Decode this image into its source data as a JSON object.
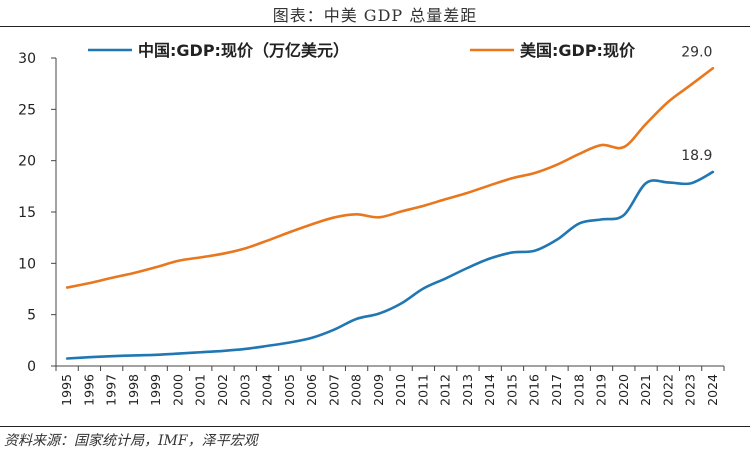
{
  "figure": {
    "title": "图表：中美 GDP 总量差距",
    "source": "资料来源：国家统计局，IMF，泽平宏观"
  },
  "colors": {
    "china": "#1f77b4",
    "usa": "#e8771e",
    "axis": "#444444"
  },
  "chart_data": {
    "type": "line",
    "title": "图表：中美 GDP 总量差距",
    "xlabel": "",
    "ylabel": "",
    "ylim": [
      0,
      30
    ],
    "yticks": [
      0,
      5,
      10,
      15,
      20,
      25,
      30
    ],
    "grid": false,
    "legend": "top",
    "x": [
      "1995",
      "1996",
      "1997",
      "1998",
      "1999",
      "2000",
      "2001",
      "2002",
      "2003",
      "2004",
      "2005",
      "2006",
      "2007",
      "2008",
      "2009",
      "2010",
      "2011",
      "2012",
      "2013",
      "2014",
      "2015",
      "2016",
      "2017",
      "2018",
      "2019",
      "2020",
      "2021",
      "2022",
      "2023",
      "2024"
    ],
    "series": [
      {
        "name": "中国:GDP:现价（万亿美元）",
        "key": "china",
        "values": [
          0.73,
          0.86,
          0.96,
          1.03,
          1.09,
          1.21,
          1.34,
          1.47,
          1.66,
          1.96,
          2.29,
          2.75,
          3.55,
          4.59,
          5.1,
          6.09,
          7.55,
          8.53,
          9.57,
          10.48,
          11.06,
          11.23,
          12.31,
          13.89,
          14.28,
          14.69,
          17.82,
          17.88,
          17.79,
          18.9
        ],
        "end_label": "18.9"
      },
      {
        "name": "美国:GDP:现价",
        "key": "usa",
        "values": [
          7.64,
          8.07,
          8.58,
          9.06,
          9.63,
          10.25,
          10.58,
          10.94,
          11.46,
          12.22,
          13.04,
          13.81,
          14.47,
          14.77,
          14.48,
          15.05,
          15.6,
          16.25,
          16.88,
          17.61,
          18.3,
          18.8,
          19.61,
          20.66,
          21.52,
          21.32,
          23.59,
          25.74,
          27.36,
          29.0
        ],
        "end_label": "29.0"
      }
    ]
  }
}
